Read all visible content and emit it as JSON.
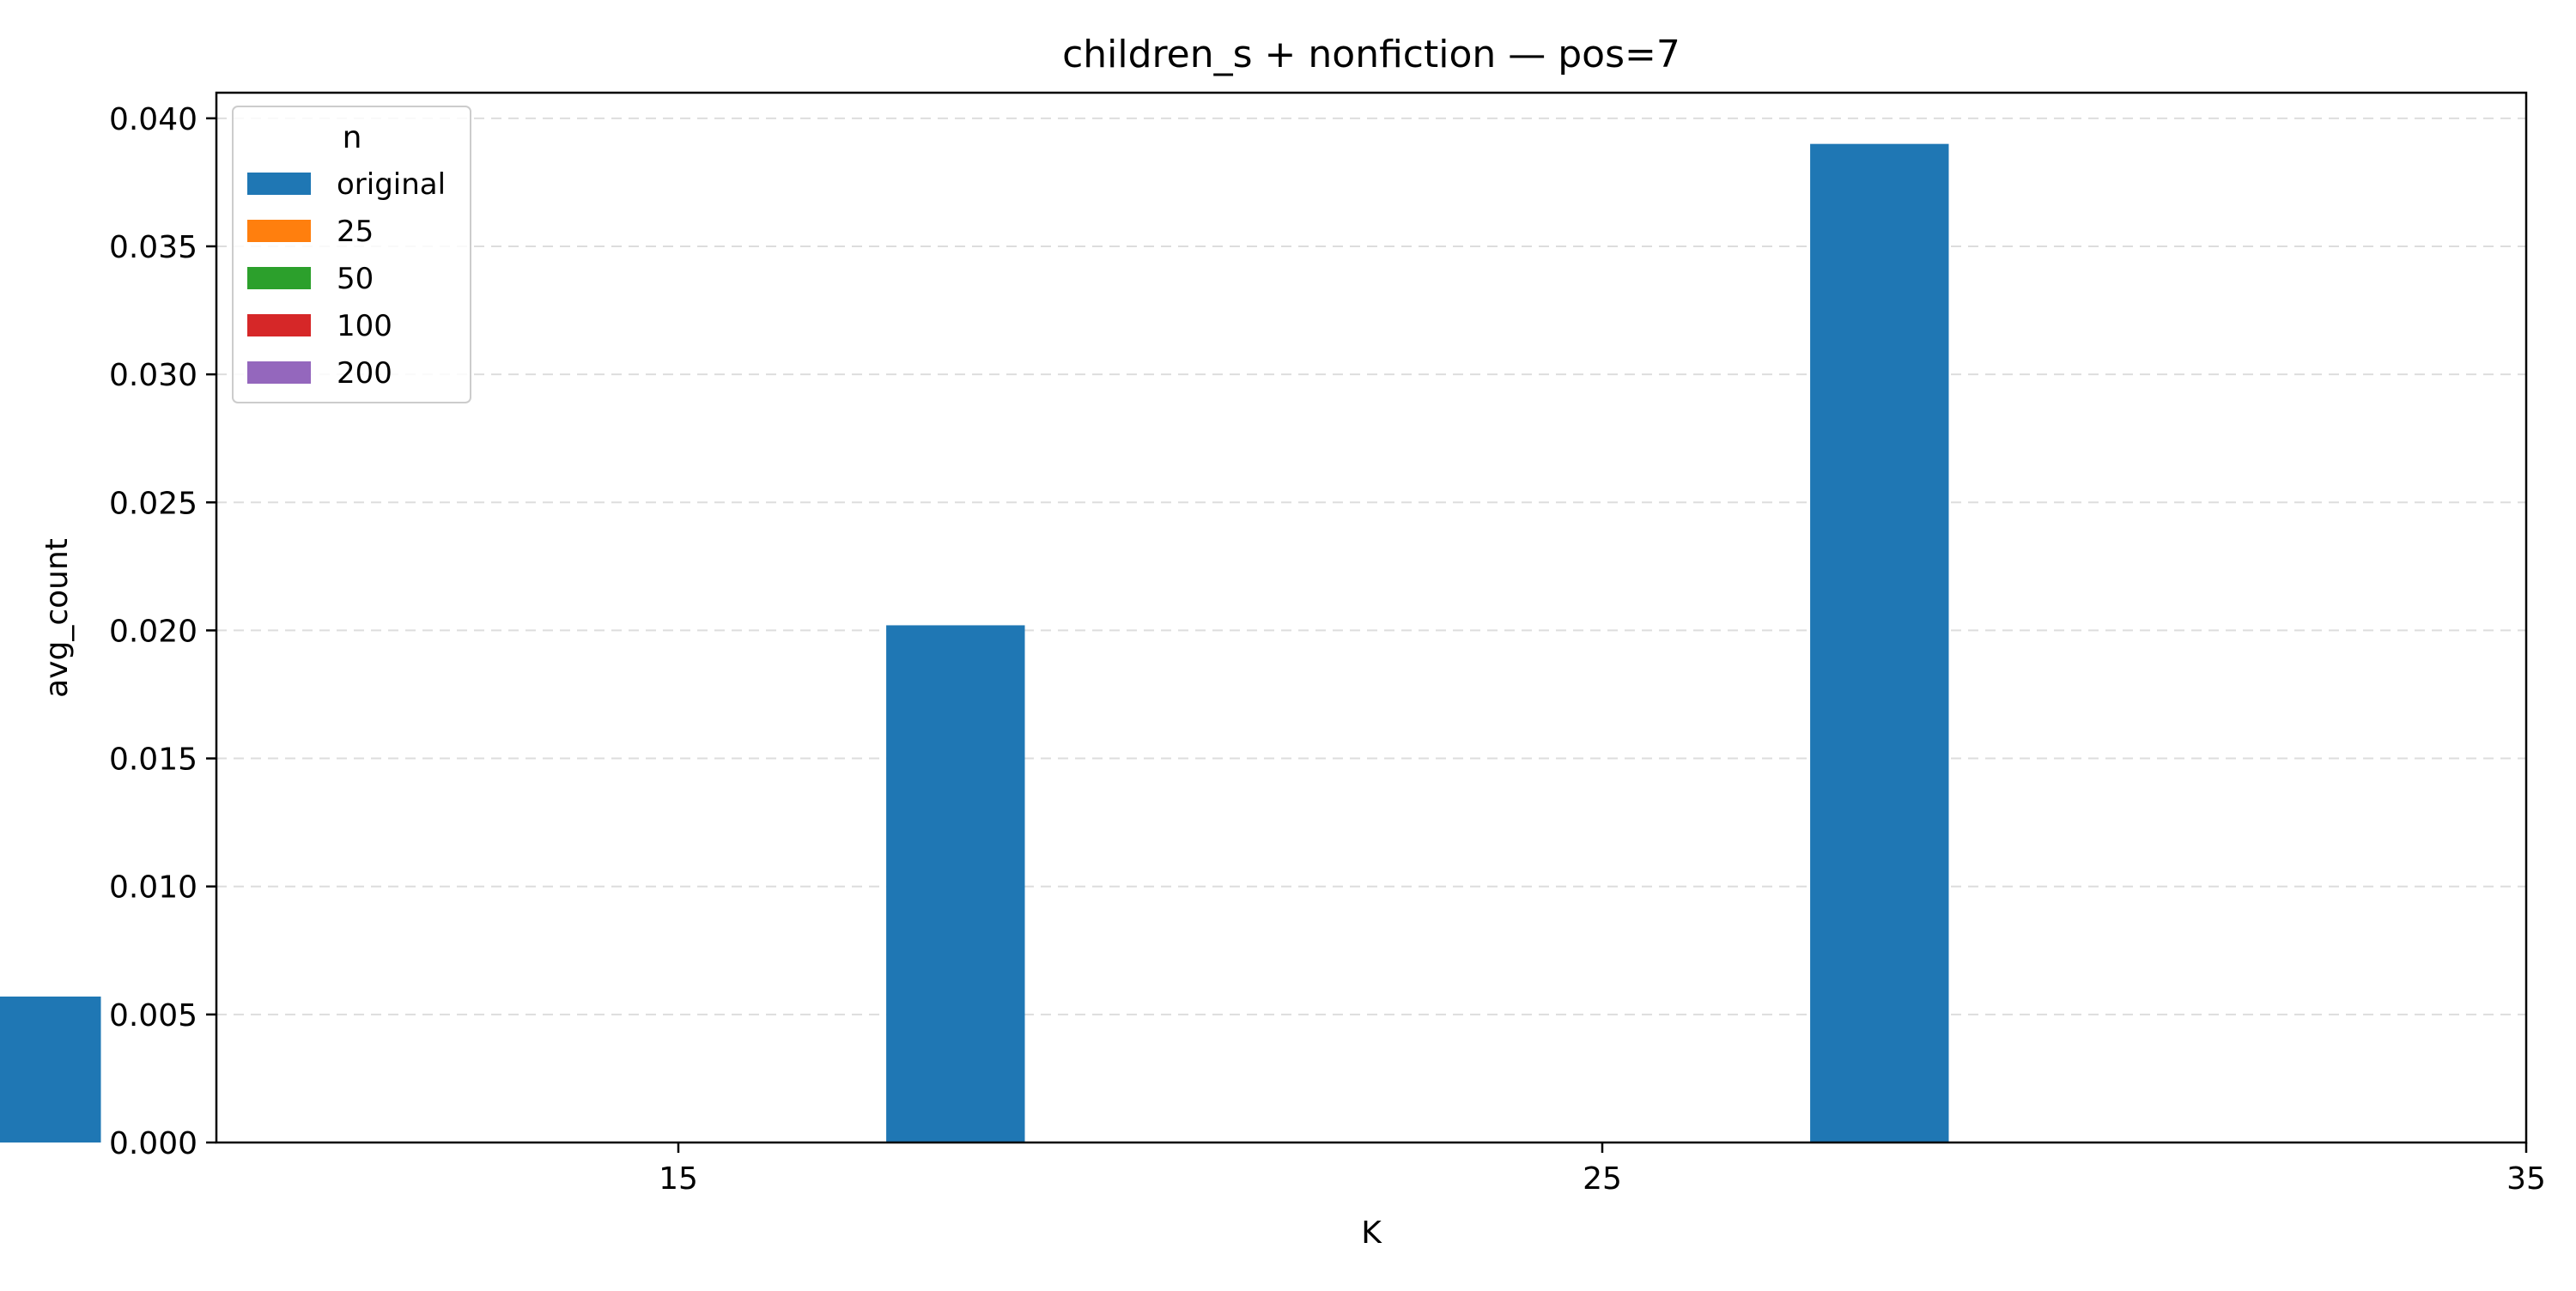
{
  "chart_data": {
    "type": "bar",
    "title": "children_s + nonfiction — pos=7",
    "xlabel": "K",
    "ylabel": "avg_count",
    "categories": [
      15,
      25,
      35
    ],
    "x_ticks": [
      "15",
      "25",
      "35"
    ],
    "y_ticks": [
      "0.000",
      "0.005",
      "0.010",
      "0.015",
      "0.020",
      "0.025",
      "0.030",
      "0.035",
      "0.040"
    ],
    "ylim": [
      0,
      0.041
    ],
    "grid": "horizontal dashed",
    "legend": {
      "title": "n",
      "placement": "top-left",
      "entries": [
        "original",
        "25",
        "50",
        "100",
        "200"
      ]
    },
    "series": [
      {
        "name": "original",
        "color": "#1f77b4",
        "values": [
          0.0057,
          0.0202,
          0.039
        ]
      },
      {
        "name": "25",
        "color": "#ff7f0e",
        "values": [
          0,
          0,
          0
        ]
      },
      {
        "name": "50",
        "color": "#2ca02c",
        "values": [
          0,
          0,
          0
        ]
      },
      {
        "name": "100",
        "color": "#d62728",
        "values": [
          0,
          0,
          0
        ]
      },
      {
        "name": "200",
        "color": "#9467bd",
        "values": [
          0,
          0,
          0
        ]
      }
    ]
  }
}
